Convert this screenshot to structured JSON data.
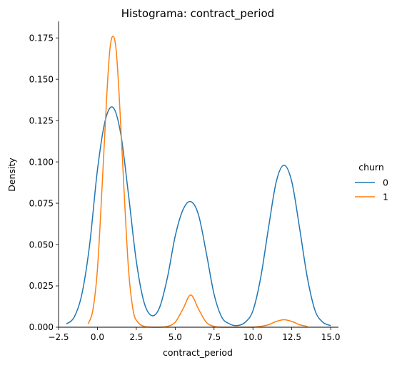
{
  "chart_data": {
    "type": "line",
    "title": "Histograma: contract_period",
    "xlabel": "contract_period",
    "ylabel": "Density",
    "xlim": [
      -2.5,
      15.5
    ],
    "ylim": [
      0,
      0.185
    ],
    "x_ticks": [
      -2.5,
      0.0,
      2.5,
      5.0,
      7.5,
      10.0,
      12.5,
      15.0
    ],
    "x_tick_labels": [
      "−2.5",
      "0.0",
      "2.5",
      "5.0",
      "7.5",
      "10.0",
      "12.5",
      "15.0"
    ],
    "y_ticks": [
      0,
      0.025,
      0.05,
      0.075,
      0.1,
      0.125,
      0.15,
      0.175
    ],
    "y_tick_labels": [
      "0.000",
      "0.025",
      "0.050",
      "0.075",
      "0.100",
      "0.125",
      "0.150",
      "0.175"
    ],
    "grid": false,
    "legend": {
      "title": "churn",
      "placement": "right"
    },
    "series": [
      {
        "name": "0",
        "color": "#1f77b4",
        "x": [
          -2.0,
          -1.5,
          -1.0,
          -0.5,
          0.0,
          0.5,
          1.0,
          1.5,
          2.0,
          2.5,
          3.0,
          3.5,
          4.0,
          4.5,
          5.0,
          5.5,
          6.0,
          6.5,
          7.0,
          7.5,
          8.0,
          8.5,
          9.0,
          9.5,
          10.0,
          10.5,
          11.0,
          11.5,
          12.0,
          12.5,
          13.0,
          13.5,
          14.0,
          14.5,
          15.0
        ],
        "y": [
          0.002,
          0.006,
          0.02,
          0.05,
          0.095,
          0.125,
          0.133,
          0.117,
          0.08,
          0.04,
          0.015,
          0.007,
          0.012,
          0.03,
          0.055,
          0.071,
          0.076,
          0.068,
          0.045,
          0.02,
          0.006,
          0.002,
          0.001,
          0.003,
          0.01,
          0.03,
          0.06,
          0.088,
          0.098,
          0.088,
          0.06,
          0.03,
          0.01,
          0.003,
          0.001
        ]
      },
      {
        "name": "1",
        "color": "#ff7f0e",
        "x": [
          -0.6,
          -0.3,
          0.0,
          0.3,
          0.6,
          0.8,
          1.0,
          1.2,
          1.4,
          1.7,
          2.0,
          2.3,
          2.6,
          3.0,
          3.5,
          4.0,
          4.5,
          5.0,
          5.5,
          6.0,
          6.5,
          7.0,
          7.5,
          8.0,
          9.0,
          10.0,
          10.5,
          11.0,
          11.5,
          12.0,
          12.5,
          13.0,
          13.5
        ],
        "y": [
          0.002,
          0.01,
          0.035,
          0.085,
          0.14,
          0.168,
          0.176,
          0.168,
          0.14,
          0.085,
          0.035,
          0.01,
          0.003,
          0.0005,
          0.0,
          0.0,
          0.0005,
          0.003,
          0.011,
          0.0195,
          0.011,
          0.003,
          0.0005,
          0.0,
          0.0,
          0.0,
          0.0005,
          0.0015,
          0.0035,
          0.0045,
          0.0035,
          0.0015,
          0.0005
        ]
      }
    ]
  }
}
